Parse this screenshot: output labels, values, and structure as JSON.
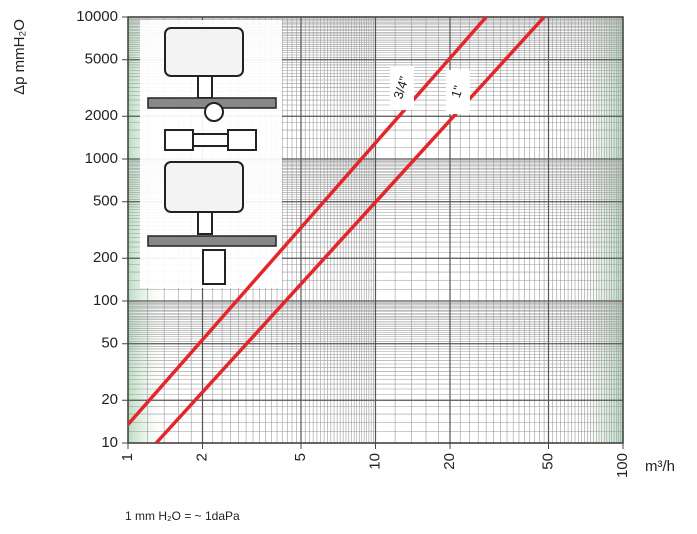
{
  "chart_data": {
    "type": "line",
    "y_label": "Δp mmH₂O",
    "x_label": "m³/h",
    "note": "1 mm H₂O = ~ 1daPa",
    "log_x": true,
    "log_y": true,
    "grid": true,
    "xlim": [
      1,
      100
    ],
    "ylim": [
      10,
      10000
    ],
    "xticks": [
      1,
      2,
      5,
      10,
      20,
      50,
      100
    ],
    "yticks": [
      10,
      20,
      50,
      100,
      200,
      500,
      1000,
      2000,
      5000,
      10000
    ],
    "series": [
      {
        "name": "3/4\"",
        "color": "#e3262c",
        "x": [
          1,
          28
        ],
        "values": [
          13.5,
          10000
        ]
      },
      {
        "name": "1\"",
        "color": "#e3262c",
        "x": [
          1.3,
          48
        ],
        "values": [
          10,
          10000
        ]
      }
    ]
  }
}
